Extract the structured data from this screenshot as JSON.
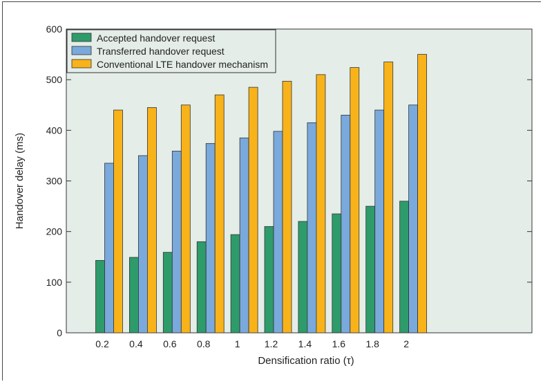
{
  "chart_data": {
    "type": "bar",
    "xlabel": "Densification ratio (τ)",
    "ylabel": "Handover delay (ms)",
    "ylim": [
      0,
      600
    ],
    "yticks": [
      0,
      100,
      200,
      300,
      400,
      500,
      600
    ],
    "grid": false,
    "legend_position": "top-left",
    "categories": [
      "0.2",
      "0.4",
      "0.6",
      "0.8",
      "1",
      "1.2",
      "1.4",
      "1.6",
      "1.8",
      "2"
    ],
    "series": [
      {
        "name": "Accepted handover request",
        "color": "#2e9b6b",
        "values": [
          143,
          149,
          159,
          180,
          194,
          210,
          220,
          235,
          250,
          260
        ]
      },
      {
        "name": "Transferred handover request",
        "color": "#7aa9dc",
        "values": [
          335,
          350,
          359,
          374,
          385,
          398,
          415,
          430,
          440,
          450
        ]
      },
      {
        "name": "Conventional LTE handover mechanism",
        "color": "#f8b31a",
        "values": [
          440,
          445,
          450,
          470,
          485,
          497,
          510,
          524,
          535,
          550
        ]
      }
    ],
    "plot_background": "#e4ede8"
  }
}
